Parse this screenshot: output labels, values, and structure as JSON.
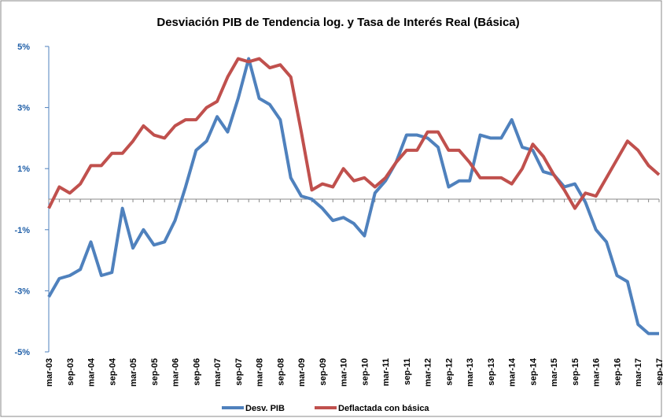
{
  "chart_data": {
    "type": "line",
    "title": "Desviación PIB de Tendencia log. y Tasa de Interés Real (Básica)",
    "categories": [
      "mar-03",
      null,
      "sep-03",
      null,
      "mar-04",
      null,
      "sep-04",
      null,
      "mar-05",
      null,
      "sep-05",
      null,
      "mar-06",
      null,
      "sep-06",
      null,
      "mar-07",
      null,
      "sep-07",
      null,
      "mar-08",
      null,
      "sep-08",
      null,
      "mar-09",
      null,
      "sep-09",
      null,
      "mar-10",
      null,
      "sep-10",
      null,
      "mar-11",
      null,
      "sep-11",
      null,
      "mar-12",
      null,
      "sep-12",
      null,
      "mar-13",
      null,
      "sep-13",
      null,
      "mar-14",
      null,
      "sep-14",
      null,
      "mar-15",
      null,
      "sep-15",
      null,
      "mar-16",
      null,
      "sep-16",
      null,
      "mar-17",
      null,
      "sep-17"
    ],
    "series": [
      {
        "name": "Desv. PIB",
        "color": "#4f81bd",
        "values": [
          -3.2,
          -2.6,
          -2.5,
          -2.3,
          -1.4,
          -2.5,
          -2.4,
          -0.3,
          -1.6,
          -1.0,
          -1.5,
          -1.4,
          -0.7,
          0.4,
          1.6,
          1.9,
          2.7,
          2.2,
          3.3,
          4.6,
          3.3,
          3.1,
          2.6,
          0.7,
          0.1,
          0.0,
          -0.3,
          -0.7,
          -0.6,
          -0.8,
          -1.2,
          0.2,
          0.6,
          1.2,
          2.1,
          2.1,
          2.0,
          1.7,
          0.4,
          0.6,
          0.6,
          2.1,
          2.0,
          2.0,
          2.6,
          1.7,
          1.6,
          0.9,
          0.8,
          0.4,
          0.5,
          -0.1,
          -1.0,
          -1.4,
          -2.5,
          -2.7,
          -4.1,
          -4.4,
          -4.4
        ]
      },
      {
        "name": "Deflactada con básica",
        "color": "#c0504d",
        "values": [
          -0.3,
          0.4,
          0.2,
          0.5,
          1.1,
          1.1,
          1.5,
          1.5,
          1.9,
          2.4,
          2.1,
          2.0,
          2.4,
          2.6,
          2.6,
          3.0,
          3.2,
          4.0,
          4.6,
          4.5,
          4.6,
          4.3,
          4.4,
          4.0,
          2.2,
          0.3,
          0.5,
          0.4,
          1.0,
          0.6,
          0.7,
          0.4,
          0.7,
          1.2,
          1.6,
          1.6,
          2.2,
          2.2,
          1.6,
          1.6,
          1.2,
          0.7,
          0.7,
          0.7,
          0.5,
          1.0,
          1.8,
          1.4,
          0.8,
          0.3,
          -0.3,
          0.2,
          0.1,
          0.7,
          1.3,
          1.9,
          1.6,
          1.1,
          0.8
        ]
      }
    ],
    "ylim": [
      -5,
      5
    ],
    "yticks": [
      {
        "value": -5,
        "label": "-5%"
      },
      {
        "value": -3,
        "label": "-3%"
      },
      {
        "value": -1,
        "label": "-1%"
      },
      {
        "value": 1,
        "label": "1%"
      },
      {
        "value": 3,
        "label": "3%"
      },
      {
        "value": 5,
        "label": "5%"
      }
    ],
    "legend": "bottom"
  }
}
